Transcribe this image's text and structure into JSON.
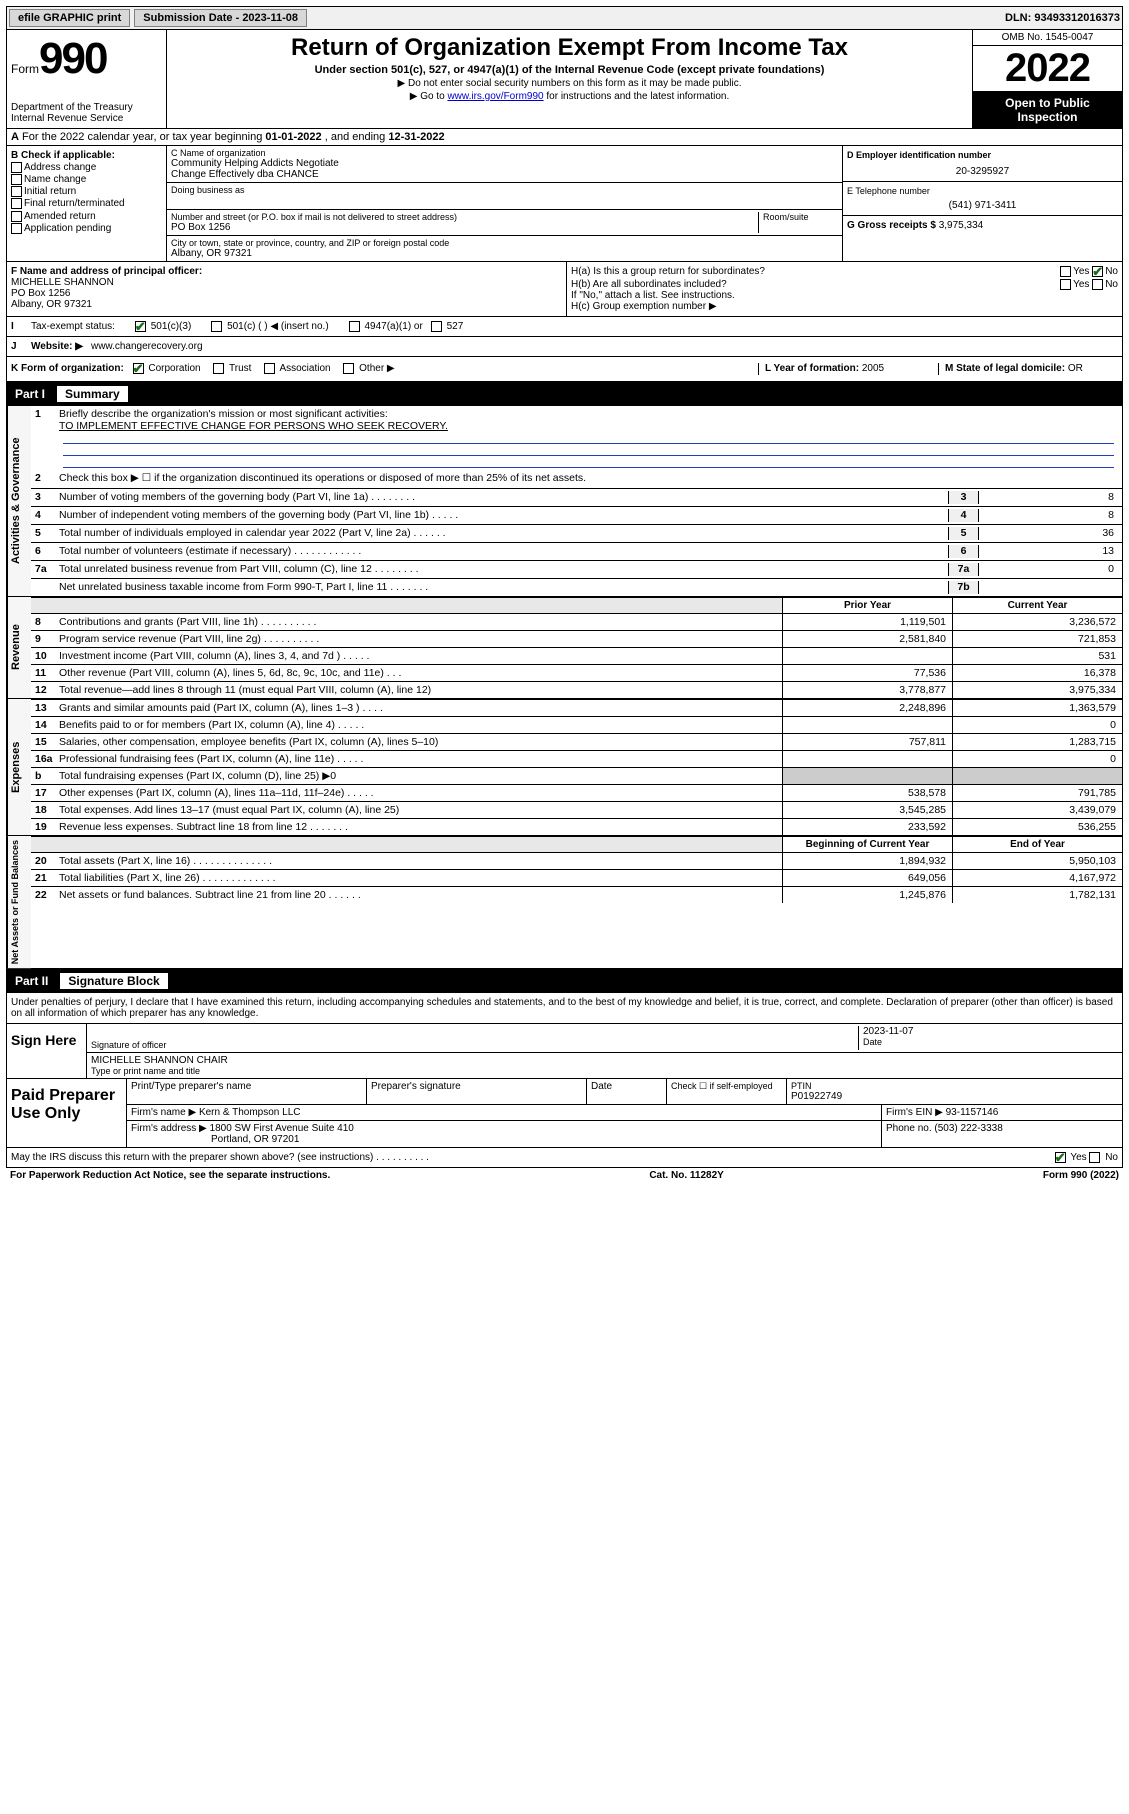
{
  "topbar": {
    "efile_label": "efile GRAPHIC print",
    "submission_label": "Submission Date - 2023-11-08",
    "dln_label": "DLN: 93493312016373"
  },
  "header": {
    "form_word": "Form",
    "form_num": "990",
    "dept": "Department of the Treasury",
    "irs": "Internal Revenue Service",
    "title": "Return of Organization Exempt From Income Tax",
    "sub1": "Under section 501(c), 527, or 4947(a)(1) of the Internal Revenue Code (except private foundations)",
    "sub2": "▶ Do not enter social security numbers on this form as it may be made public.",
    "sub3_pre": "▶ Go to ",
    "sub3_link": "www.irs.gov/Form990",
    "sub3_post": " for instructions and the latest information.",
    "omb": "OMB No. 1545-0047",
    "year": "2022",
    "inspect1": "Open to Public",
    "inspect2": "Inspection"
  },
  "sec_a": {
    "text_pre": "For the 2022 calendar year, or tax year beginning ",
    "begin": "01-01-2022",
    "mid": " , and ending ",
    "end": "12-31-2022"
  },
  "col_b": {
    "title": "B Check if applicable:",
    "items": [
      "Address change",
      "Name change",
      "Initial return",
      "Final return/terminated",
      "Amended return",
      "Application pending"
    ]
  },
  "col_c": {
    "name_label": "C Name of organization",
    "name1": "Community Helping Addicts Negotiate",
    "name2": "Change Effectively dba CHANCE",
    "dba_label": "Doing business as",
    "addr_label": "Number and street (or P.O. box if mail is not delivered to street address)",
    "room_label": "Room/suite",
    "addr": "PO Box 1256",
    "city_label": "City or town, state or province, country, and ZIP or foreign postal code",
    "city": "Albany, OR  97321"
  },
  "col_de": {
    "d_label": "D Employer identification number",
    "d_val": "20-3295927",
    "e_label": "E Telephone number",
    "e_val": "(541) 971-3411",
    "g_label": "G Gross receipts $",
    "g_val": "3,975,334"
  },
  "sec_f": {
    "f_label": "F Name and address of principal officer:",
    "f_name": "MICHELLE SHANNON",
    "f_addr1": "PO Box 1256",
    "f_addr2": "Albany, OR  97321",
    "ha_label": "H(a)  Is this a group return for subordinates?",
    "hb_label": "H(b)  Are all subordinates included?",
    "h_note": "If \"No,\" attach a list. See instructions.",
    "hc_label": "H(c)  Group exemption number ▶",
    "yes": "Yes",
    "no": "No"
  },
  "sec_i": {
    "label": "Tax-exempt status:",
    "opt1": "501(c)(3)",
    "opt2": "501(c) (   ) ◀ (insert no.)",
    "opt3": "4947(a)(1) or",
    "opt4": "527"
  },
  "sec_j": {
    "label": "Website: ▶",
    "val": "www.changerecovery.org"
  },
  "sec_k": {
    "label": "K Form of organization:",
    "opts": [
      "Corporation",
      "Trust",
      "Association",
      "Other ▶"
    ],
    "l_label": "L Year of formation:",
    "l_val": "2005",
    "m_label": "M State of legal domicile:",
    "m_val": "OR"
  },
  "part1": {
    "num": "Part I",
    "title": "Summary"
  },
  "summary": {
    "l1_label": "Briefly describe the organization's mission or most significant activities:",
    "l1_val": "TO IMPLEMENT EFFECTIVE CHANGE FOR PERSONS WHO SEEK RECOVERY.",
    "l2": "Check this box ▶ ☐  if the organization discontinued its operations or disposed of more than 25% of its net assets.",
    "lines_top": [
      {
        "n": "3",
        "t": "Number of voting members of the governing body (Part VI, line 1a)  .    .    .    .    .    .    .    .",
        "box": "3",
        "v": "8"
      },
      {
        "n": "4",
        "t": "Number of independent voting members of the governing body (Part VI, line 1b)  .    .    .    .    .",
        "box": "4",
        "v": "8"
      },
      {
        "n": "5",
        "t": "Total number of individuals employed in calendar year 2022 (Part V, line 2a)  .    .    .    .    .    .",
        "box": "5",
        "v": "36"
      },
      {
        "n": "6",
        "t": "Total number of volunteers (estimate if necessary)  .    .    .    .    .    .    .    .    .    .    .    .",
        "box": "6",
        "v": "13"
      },
      {
        "n": "7a",
        "t": "Total unrelated business revenue from Part VIII, column (C), line 12  .    .    .    .    .    .    .    .",
        "box": "7a",
        "v": "0"
      },
      {
        "n": "",
        "t": "Net unrelated business taxable income from Form 990-T, Part I, line 11  .    .    .    .    .    .    .",
        "box": "7b",
        "v": ""
      }
    ],
    "col_headers": {
      "prior": "Prior Year",
      "current": "Current Year"
    },
    "revenue": [
      {
        "n": "8",
        "t": "Contributions and grants (Part VIII, line 1h)  .    .    .    .    .    .    .    .    .    .",
        "p": "1,119,501",
        "c": "3,236,572"
      },
      {
        "n": "9",
        "t": "Program service revenue (Part VIII, line 2g)  .    .    .    .    .    .    .    .    .    .",
        "p": "2,581,840",
        "c": "721,853"
      },
      {
        "n": "10",
        "t": "Investment income (Part VIII, column (A), lines 3, 4, and 7d )  .    .    .    .    .",
        "p": "",
        "c": "531"
      },
      {
        "n": "11",
        "t": "Other revenue (Part VIII, column (A), lines 5, 6d, 8c, 9c, 10c, and 11e)  .    .    .",
        "p": "77,536",
        "c": "16,378"
      },
      {
        "n": "12",
        "t": "Total revenue—add lines 8 through 11 (must equal Part VIII, column (A), line 12)",
        "p": "3,778,877",
        "c": "3,975,334"
      }
    ],
    "expenses": [
      {
        "n": "13",
        "t": "Grants and similar amounts paid (Part IX, column (A), lines 1–3 )  .    .    .    .",
        "p": "2,248,896",
        "c": "1,363,579"
      },
      {
        "n": "14",
        "t": "Benefits paid to or for members (Part IX, column (A), line 4)  .    .    .    .    .",
        "p": "",
        "c": "0"
      },
      {
        "n": "15",
        "t": "Salaries, other compensation, employee benefits (Part IX, column (A), lines 5–10)",
        "p": "757,811",
        "c": "1,283,715"
      },
      {
        "n": "16a",
        "t": "Professional fundraising fees (Part IX, column (A), line 11e)  .    .    .    .    .",
        "p": "",
        "c": "0"
      },
      {
        "n": "b",
        "t": "Total fundraising expenses (Part IX, column (D), line 25) ▶0",
        "p": "__SHADE__",
        "c": "__SHADE__"
      },
      {
        "n": "17",
        "t": "Other expenses (Part IX, column (A), lines 11a–11d, 11f–24e)  .    .    .    .    .",
        "p": "538,578",
        "c": "791,785"
      },
      {
        "n": "18",
        "t": "Total expenses. Add lines 13–17 (must equal Part IX, column (A), line 25)",
        "p": "3,545,285",
        "c": "3,439,079"
      },
      {
        "n": "19",
        "t": "Revenue less expenses. Subtract line 18 from line 12  .    .    .    .    .    .    .",
        "p": "233,592",
        "c": "536,255"
      }
    ],
    "net_headers": {
      "prior": "Beginning of Current Year",
      "current": "End of Year"
    },
    "netassets": [
      {
        "n": "20",
        "t": "Total assets (Part X, line 16)  .    .    .    .    .    .    .    .    .    .    .    .    .    .",
        "p": "1,894,932",
        "c": "5,950,103"
      },
      {
        "n": "21",
        "t": "Total liabilities (Part X, line 26)  .    .    .    .    .    .    .    .    .    .    .    .    .",
        "p": "649,056",
        "c": "4,167,972"
      },
      {
        "n": "22",
        "t": "Net assets or fund balances. Subtract line 21 from line 20  .    .    .    .    .    .",
        "p": "1,245,876",
        "c": "1,782,131"
      }
    ],
    "vert_labels": {
      "gov": "Activities & Governance",
      "rev": "Revenue",
      "exp": "Expenses",
      "net": "Net Assets or Fund Balances"
    }
  },
  "part2": {
    "num": "Part II",
    "title": "Signature Block"
  },
  "sig": {
    "decl": "Under penalties of perjury, I declare that I have examined this return, including accompanying schedules and statements, and to the best of my knowledge and belief, it is true, correct, and complete. Declaration of preparer (other than officer) is based on all information of which preparer has any knowledge.",
    "sign_here": "Sign Here",
    "sig_officer": "Signature of officer",
    "date_label": "Date",
    "date_val": "2023-11-07",
    "name_title": "MICHELLE SHANNON  CHAIR",
    "name_title_label": "Type or print name and title"
  },
  "prep": {
    "label": "Paid Preparer Use Only",
    "h_name": "Print/Type preparer's name",
    "h_sig": "Preparer's signature",
    "h_date": "Date",
    "h_check": "Check ☐ if self-employed",
    "h_ptin": "PTIN",
    "ptin_val": "P01922749",
    "firm_name_label": "Firm's name   ▶",
    "firm_name": "Kern & Thompson LLC",
    "firm_ein_label": "Firm's EIN ▶",
    "firm_ein": "93-1157146",
    "firm_addr_label": "Firm's address ▶",
    "firm_addr1": "1800 SW First Avenue Suite 410",
    "firm_addr2": "Portland, OR  97201",
    "phone_label": "Phone no.",
    "phone": "(503) 222-3338"
  },
  "footer": {
    "discuss": "May the IRS discuss this return with the preparer shown above? (see instructions)  .    .    .    .    .    .    .    .    .    .",
    "yes": "Yes",
    "no": "No",
    "paperwork": "For Paperwork Reduction Act Notice, see the separate instructions.",
    "catno": "Cat. No. 11282Y",
    "formno": "Form 990 (2022)"
  }
}
